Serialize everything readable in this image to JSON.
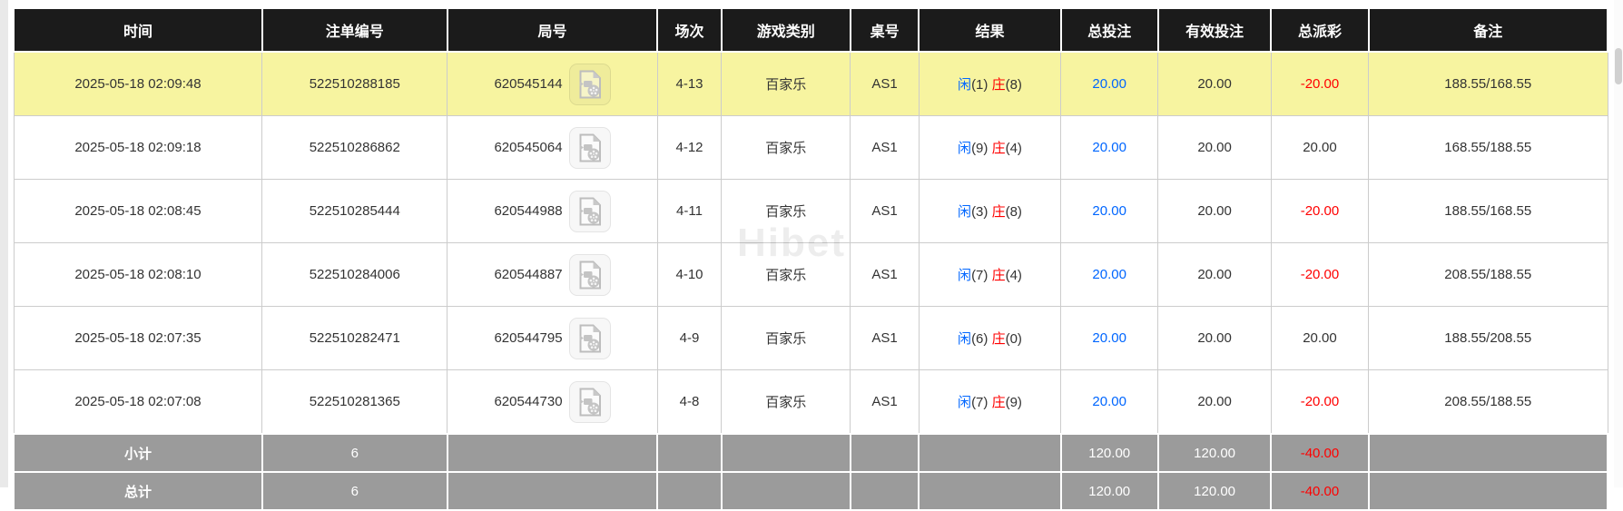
{
  "watermark": {
    "text": "Hibet"
  },
  "colors": {
    "header_bg": "#1b1b1b",
    "highlight_row_bg": "#f7f4a0",
    "footer_bg": "#9b9b9b",
    "bet_blue": "#0066ff",
    "loss_red": "#ff0000",
    "body_text": "#333333"
  },
  "icons": {
    "video_replay": "video-file-icon"
  },
  "table": {
    "columns": [
      {
        "key": "time",
        "label": "时间"
      },
      {
        "key": "bet_no",
        "label": "注单编号"
      },
      {
        "key": "round_no",
        "label": "局号"
      },
      {
        "key": "session",
        "label": "场次"
      },
      {
        "key": "game_type",
        "label": "游戏类别"
      },
      {
        "key": "table_no",
        "label": "桌号"
      },
      {
        "key": "result",
        "label": "结果"
      },
      {
        "key": "total_bet",
        "label": "总投注"
      },
      {
        "key": "valid_bet",
        "label": "有效投注"
      },
      {
        "key": "total_payout",
        "label": "总派彩"
      },
      {
        "key": "remark",
        "label": "备注"
      }
    ],
    "rows": [
      {
        "highlighted": true,
        "time": "2025-05-18 02:09:48",
        "bet_no": "522510288185",
        "round_no": "620545144",
        "session": "4-13",
        "game_type": "百家乐",
        "table_no": "AS1",
        "result": {
          "player": "闲",
          "p_score": "(1)",
          "banker": "庄",
          "b_score": "(8)"
        },
        "total_bet": "20.00",
        "valid_bet": "20.00",
        "total_payout": "-20.00",
        "remark": "188.55/168.55"
      },
      {
        "highlighted": false,
        "time": "2025-05-18 02:09:18",
        "bet_no": "522510286862",
        "round_no": "620545064",
        "session": "4-12",
        "game_type": "百家乐",
        "table_no": "AS1",
        "result": {
          "player": "闲",
          "p_score": "(9)",
          "banker": "庄",
          "b_score": "(4)"
        },
        "total_bet": "20.00",
        "valid_bet": "20.00",
        "total_payout": "20.00",
        "remark": "168.55/188.55"
      },
      {
        "highlighted": false,
        "time": "2025-05-18 02:08:45",
        "bet_no": "522510285444",
        "round_no": "620544988",
        "session": "4-11",
        "game_type": "百家乐",
        "table_no": "AS1",
        "result": {
          "player": "闲",
          "p_score": "(3)",
          "banker": "庄",
          "b_score": "(8)"
        },
        "total_bet": "20.00",
        "valid_bet": "20.00",
        "total_payout": "-20.00",
        "remark": "188.55/168.55"
      },
      {
        "highlighted": false,
        "time": "2025-05-18 02:08:10",
        "bet_no": "522510284006",
        "round_no": "620544887",
        "session": "4-10",
        "game_type": "百家乐",
        "table_no": "AS1",
        "result": {
          "player": "闲",
          "p_score": "(7)",
          "banker": "庄",
          "b_score": "(4)"
        },
        "total_bet": "20.00",
        "valid_bet": "20.00",
        "total_payout": "-20.00",
        "remark": "208.55/188.55"
      },
      {
        "highlighted": false,
        "time": "2025-05-18 02:07:35",
        "bet_no": "522510282471",
        "round_no": "620544795",
        "session": "4-9",
        "game_type": "百家乐",
        "table_no": "AS1",
        "result": {
          "player": "闲",
          "p_score": "(6)",
          "banker": "庄",
          "b_score": "(0)"
        },
        "total_bet": "20.00",
        "valid_bet": "20.00",
        "total_payout": "20.00",
        "remark": "188.55/208.55"
      },
      {
        "highlighted": false,
        "time": "2025-05-18 02:07:08",
        "bet_no": "522510281365",
        "round_no": "620544730",
        "session": "4-8",
        "game_type": "百家乐",
        "table_no": "AS1",
        "result": {
          "player": "闲",
          "p_score": "(7)",
          "banker": "庄",
          "b_score": "(9)"
        },
        "total_bet": "20.00",
        "valid_bet": "20.00",
        "total_payout": "-20.00",
        "remark": "208.55/188.55"
      }
    ],
    "footer": [
      {
        "label": "小计",
        "count": "6",
        "total_bet": "120.00",
        "valid_bet": "120.00",
        "total_payout": "-40.00"
      },
      {
        "label": "总计",
        "count": "6",
        "total_bet": "120.00",
        "valid_bet": "120.00",
        "total_payout": "-40.00"
      }
    ]
  }
}
